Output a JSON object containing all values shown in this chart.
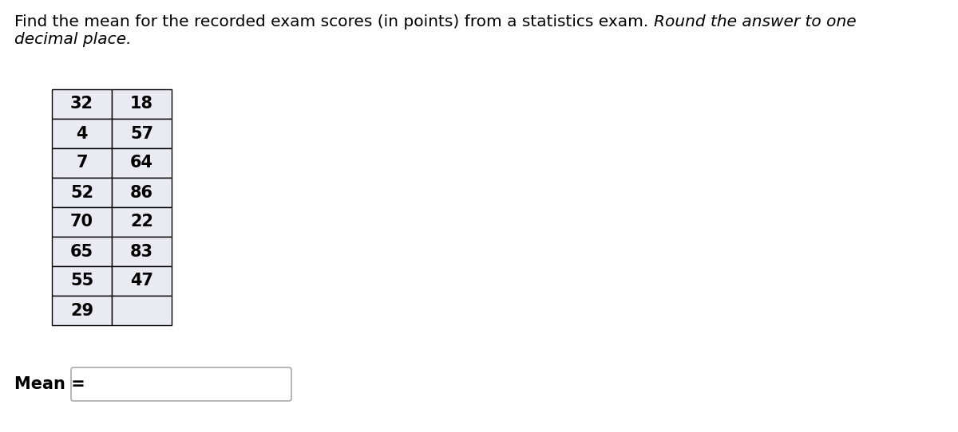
{
  "title_line1_normal": "Find the mean for the recorded exam scores (in points) from a statistics exam. ",
  "title_line1_italic": "Round the answer to one",
  "title_line2_italic": "decimal place.",
  "col1": [
    32,
    4,
    7,
    52,
    70,
    65,
    55,
    29
  ],
  "col2": [
    18,
    57,
    64,
    86,
    22,
    83,
    47,
    null
  ],
  "mean_label": "Mean =",
  "table_bg": "#eaeaf2",
  "font_size_title": 14.5,
  "font_size_table": 15,
  "font_size_mean": 15
}
